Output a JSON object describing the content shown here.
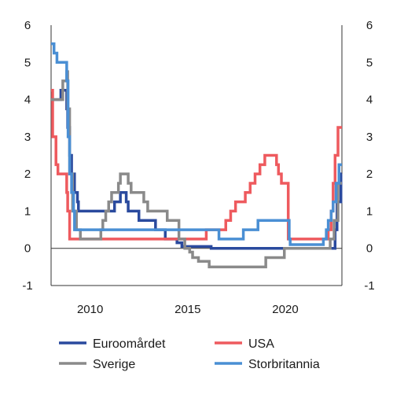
{
  "chart_data": {
    "type": "line",
    "title": "",
    "xlabel": "",
    "ylabel": "",
    "xlim": [
      2008.0,
      2022.9
    ],
    "ylim": [
      -1,
      6
    ],
    "x_ticks": [
      2010,
      2015,
      2020
    ],
    "y_ticks": [
      -1,
      0,
      1,
      2,
      3,
      4,
      5,
      6
    ],
    "x_tick_labels": [
      "2010",
      "2015",
      "2020"
    ],
    "y_tick_labels_left": [
      "-1",
      "0",
      "1",
      "2",
      "3",
      "4",
      "5",
      "6"
    ],
    "y_tick_labels_right": [
      "-1",
      "0",
      "1",
      "2",
      "3",
      "4",
      "5",
      "6"
    ],
    "grid": false,
    "step": true,
    "legend": {
      "placement": "bottom",
      "entries": [
        "Euroomårdet",
        "USA",
        "Sverige",
        "Storbritannia"
      ]
    },
    "series": [
      {
        "name": "Euroomårdet",
        "color": "#2a4a9e",
        "points": [
          [
            2008.0,
            4.0
          ],
          [
            2008.5,
            4.25
          ],
          [
            2008.8,
            3.75
          ],
          [
            2008.85,
            3.25
          ],
          [
            2008.95,
            2.5
          ],
          [
            2009.05,
            2.0
          ],
          [
            2009.2,
            1.5
          ],
          [
            2009.35,
            1.25
          ],
          [
            2009.4,
            1.0
          ],
          [
            2011.25,
            1.25
          ],
          [
            2011.55,
            1.5
          ],
          [
            2011.85,
            1.25
          ],
          [
            2011.95,
            1.0
          ],
          [
            2012.5,
            0.75
          ],
          [
            2013.35,
            0.5
          ],
          [
            2013.85,
            0.25
          ],
          [
            2014.45,
            0.15
          ],
          [
            2014.7,
            0.05
          ],
          [
            2016.2,
            0.0
          ],
          [
            2022.55,
            0.5
          ],
          [
            2022.65,
            1.25
          ],
          [
            2022.85,
            2.0
          ],
          [
            2022.9,
            2.0
          ]
        ]
      },
      {
        "name": "USA",
        "color": "#ee5a5e",
        "points": [
          [
            2008.0,
            4.25
          ],
          [
            2008.08,
            3.0
          ],
          [
            2008.25,
            2.25
          ],
          [
            2008.35,
            2.0
          ],
          [
            2008.8,
            1.5
          ],
          [
            2008.85,
            1.0
          ],
          [
            2008.95,
            0.25
          ],
          [
            2015.95,
            0.5
          ],
          [
            2016.95,
            0.75
          ],
          [
            2017.2,
            1.0
          ],
          [
            2017.45,
            1.25
          ],
          [
            2017.95,
            1.5
          ],
          [
            2018.2,
            1.75
          ],
          [
            2018.45,
            2.0
          ],
          [
            2018.7,
            2.25
          ],
          [
            2018.95,
            2.5
          ],
          [
            2019.55,
            2.25
          ],
          [
            2019.65,
            2.0
          ],
          [
            2019.8,
            1.75
          ],
          [
            2020.15,
            0.25
          ],
          [
            2022.2,
            0.5
          ],
          [
            2022.35,
            1.0
          ],
          [
            2022.45,
            1.75
          ],
          [
            2022.55,
            2.5
          ],
          [
            2022.7,
            3.25
          ],
          [
            2022.9,
            3.25
          ]
        ]
      },
      {
        "name": "Sverige",
        "color": "#8a8a8a",
        "points": [
          [
            2008.0,
            4.0
          ],
          [
            2008.6,
            4.5
          ],
          [
            2008.8,
            4.75
          ],
          [
            2008.85,
            3.75
          ],
          [
            2008.95,
            2.0
          ],
          [
            2009.1,
            1.0
          ],
          [
            2009.3,
            0.5
          ],
          [
            2009.5,
            0.25
          ],
          [
            2010.55,
            0.5
          ],
          [
            2010.65,
            0.75
          ],
          [
            2010.8,
            1.0
          ],
          [
            2010.95,
            1.25
          ],
          [
            2011.1,
            1.5
          ],
          [
            2011.45,
            1.75
          ],
          [
            2011.55,
            2.0
          ],
          [
            2011.95,
            1.75
          ],
          [
            2012.1,
            1.5
          ],
          [
            2012.75,
            1.25
          ],
          [
            2012.95,
            1.0
          ],
          [
            2013.95,
            0.75
          ],
          [
            2014.55,
            0.25
          ],
          [
            2014.85,
            0.0
          ],
          [
            2015.1,
            -0.1
          ],
          [
            2015.25,
            -0.25
          ],
          [
            2015.55,
            -0.35
          ],
          [
            2016.1,
            -0.5
          ],
          [
            2019.0,
            -0.25
          ],
          [
            2019.95,
            0.0
          ],
          [
            2022.3,
            0.25
          ],
          [
            2022.5,
            0.75
          ],
          [
            2022.7,
            1.75
          ],
          [
            2022.9,
            1.75
          ]
        ]
      },
      {
        "name": "Storbritannia",
        "color": "#4a8fd4",
        "points": [
          [
            2008.0,
            5.5
          ],
          [
            2008.15,
            5.25
          ],
          [
            2008.3,
            5.0
          ],
          [
            2008.8,
            4.5
          ],
          [
            2008.87,
            3.0
          ],
          [
            2008.95,
            2.0
          ],
          [
            2009.05,
            1.5
          ],
          [
            2009.15,
            1.0
          ],
          [
            2009.2,
            0.5
          ],
          [
            2016.6,
            0.25
          ],
          [
            2017.85,
            0.5
          ],
          [
            2018.6,
            0.75
          ],
          [
            2020.2,
            0.25
          ],
          [
            2020.25,
            0.1
          ],
          [
            2021.95,
            0.25
          ],
          [
            2022.1,
            0.5
          ],
          [
            2022.2,
            0.75
          ],
          [
            2022.35,
            1.0
          ],
          [
            2022.45,
            1.25
          ],
          [
            2022.6,
            1.75
          ],
          [
            2022.75,
            2.25
          ],
          [
            2022.9,
            2.25
          ]
        ]
      }
    ]
  }
}
